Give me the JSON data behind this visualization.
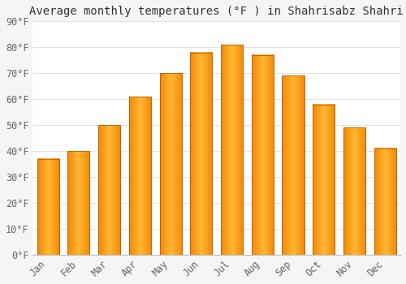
{
  "title": "Average monthly temperatures (°F ) in Shahrisabz Shahri",
  "months": [
    "Jan",
    "Feb",
    "Mar",
    "Apr",
    "May",
    "Jun",
    "Jul",
    "Aug",
    "Sep",
    "Oct",
    "Nov",
    "Dec"
  ],
  "values": [
    37,
    40,
    50,
    61,
    70,
    78,
    81,
    77,
    69,
    58,
    49,
    41
  ],
  "bar_color_light": "#FFB733",
  "bar_color_dark": "#F08000",
  "bar_edge_color": "#B86000",
  "plot_bg_color": "#FFFFFF",
  "fig_bg_color": "#F5F5F5",
  "grid_color": "#DDDDDD",
  "text_color": "#666666",
  "title_color": "#333333",
  "ylim": [
    0,
    90
  ],
  "yticks": [
    0,
    10,
    20,
    30,
    40,
    50,
    60,
    70,
    80,
    90
  ],
  "title_fontsize": 10,
  "tick_fontsize": 8.5,
  "font_family": "monospace",
  "bar_width": 0.72
}
